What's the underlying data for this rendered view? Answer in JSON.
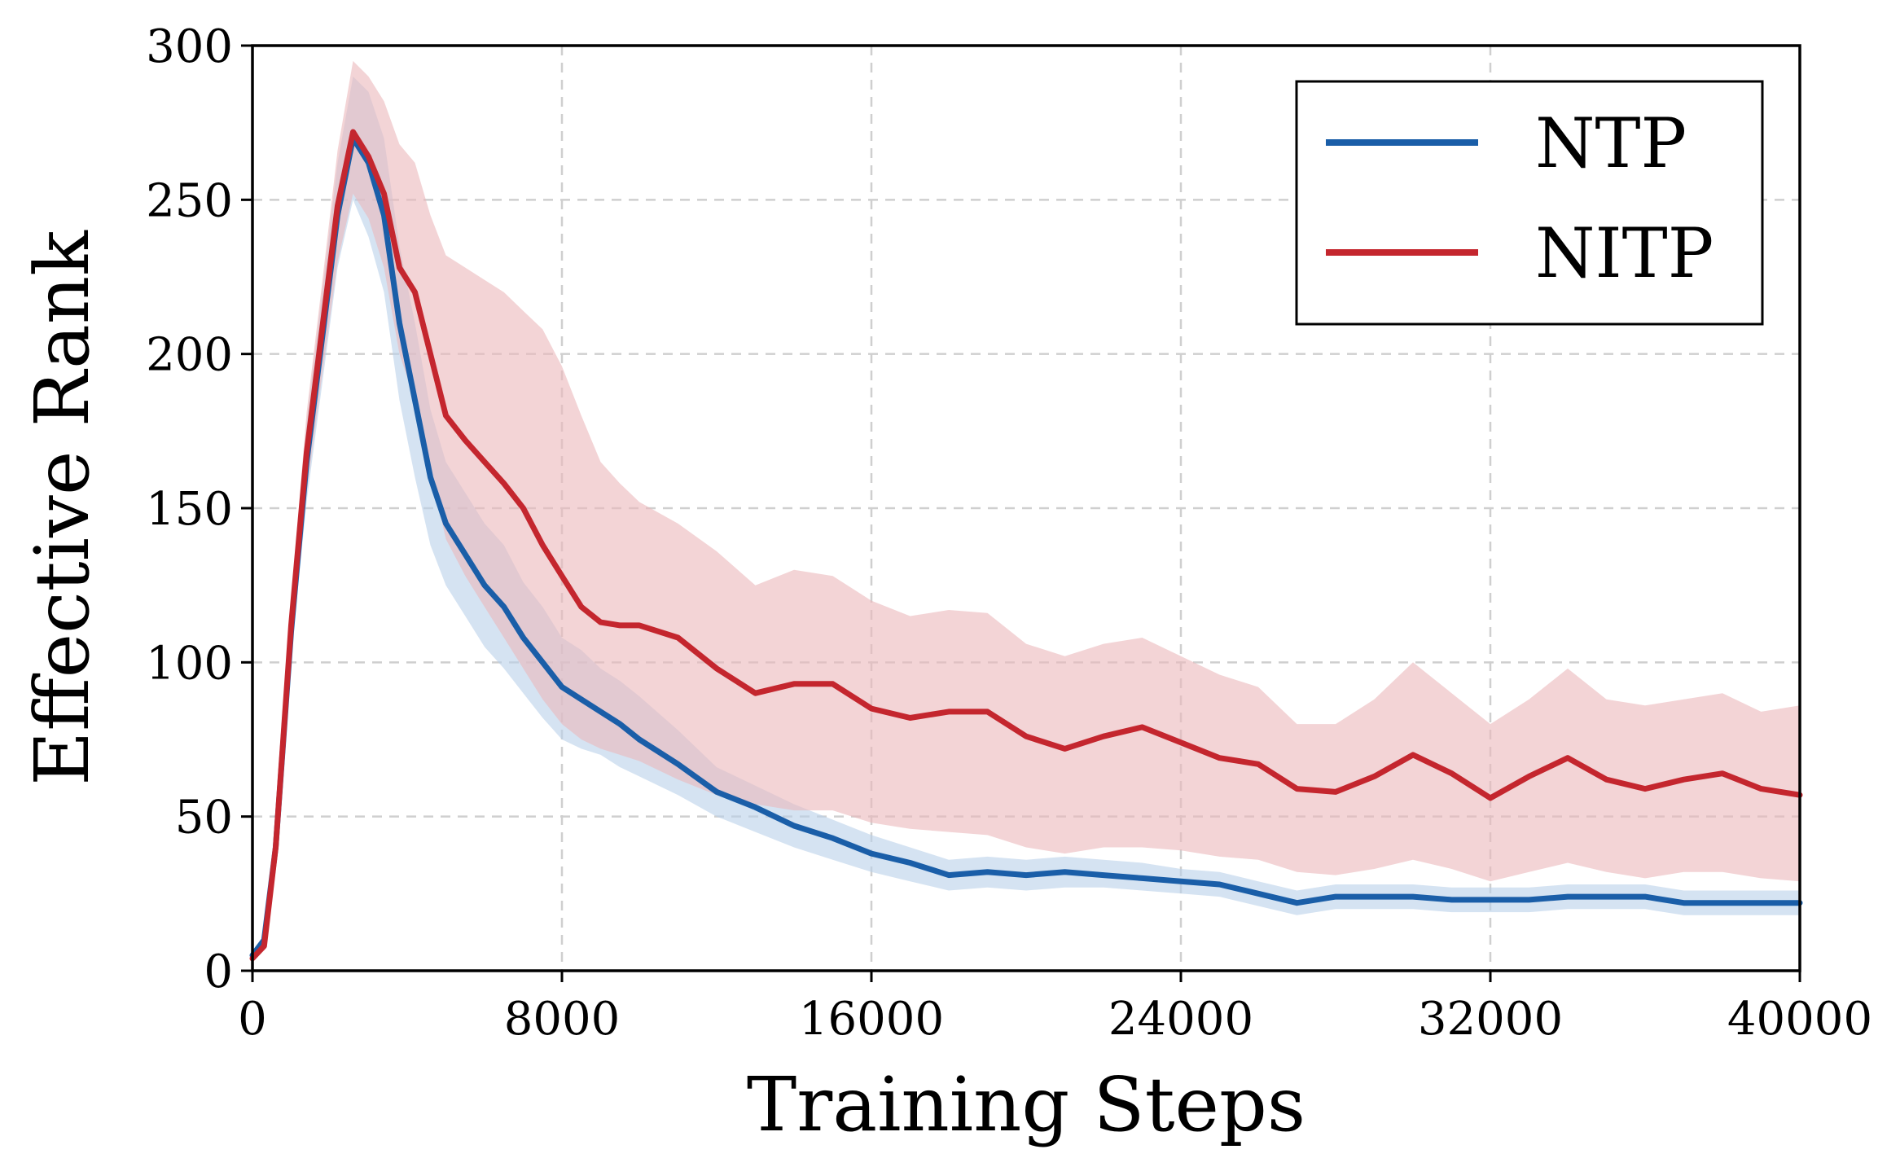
{
  "chart_data": {
    "type": "line",
    "xlabel": "Training Steps",
    "ylabel": "Effective Rank",
    "xlim": [
      0,
      40000
    ],
    "ylim": [
      0,
      300
    ],
    "xticks": [
      0,
      8000,
      16000,
      24000,
      32000,
      40000
    ],
    "xtick_labels": [
      "0",
      "8000",
      "16000",
      "24000",
      "32000",
      "40000"
    ],
    "yticks": [
      0,
      50,
      100,
      150,
      200,
      250,
      300
    ],
    "ytick_labels": [
      "0",
      "50",
      "100",
      "150",
      "200",
      "250",
      "300"
    ],
    "grid": true,
    "legend_position": "top-right",
    "series": [
      {
        "name": "NTP",
        "color": "#1a5ea8",
        "band_color": "#b9d0ea",
        "x": [
          0,
          300,
          600,
          1000,
          1400,
          1800,
          2200,
          2600,
          3000,
          3400,
          3800,
          4200,
          4600,
          5000,
          5500,
          6000,
          6500,
          7000,
          7500,
          8000,
          8500,
          9000,
          9500,
          10000,
          11000,
          12000,
          13000,
          14000,
          15000,
          16000,
          17000,
          18000,
          19000,
          20000,
          21000,
          22000,
          23000,
          24000,
          25000,
          26000,
          27000,
          28000,
          29000,
          30000,
          31000,
          32000,
          33000,
          34000,
          35000,
          36000,
          37000,
          38000,
          39000,
          40000
        ],
        "y": [
          5,
          10,
          40,
          110,
          165,
          205,
          245,
          270,
          262,
          245,
          210,
          185,
          160,
          145,
          135,
          125,
          118,
          108,
          100,
          92,
          88,
          84,
          80,
          75,
          67,
          58,
          53,
          47,
          43,
          38,
          35,
          31,
          32,
          31,
          32,
          31,
          30,
          29,
          28,
          25,
          22,
          24,
          24,
          24,
          23,
          23,
          23,
          24,
          24,
          24,
          22,
          22,
          22,
          22
        ],
        "lower": [
          5,
          9,
          37,
          102,
          152,
          190,
          228,
          250,
          238,
          220,
          185,
          160,
          138,
          125,
          115,
          105,
          98,
          90,
          82,
          75,
          72,
          70,
          66,
          63,
          57,
          50,
          45,
          40,
          36,
          32,
          29,
          26,
          27,
          26,
          27,
          27,
          26,
          25,
          24,
          21,
          18,
          20,
          20,
          20,
          19,
          19,
          19,
          20,
          20,
          20,
          18,
          18,
          18,
          18
        ],
        "upper": [
          5,
          11,
          43,
          118,
          178,
          220,
          262,
          290,
          285,
          270,
          235,
          210,
          182,
          165,
          155,
          145,
          138,
          126,
          118,
          108,
          104,
          98,
          94,
          89,
          78,
          66,
          60,
          54,
          49,
          44,
          40,
          36,
          37,
          36,
          37,
          36,
          35,
          33,
          32,
          29,
          26,
          28,
          28,
          28,
          27,
          27,
          27,
          28,
          28,
          28,
          26,
          26,
          26,
          26
        ]
      },
      {
        "name": "NITP",
        "color": "#c4262e",
        "band_color": "#ebb7bb",
        "x": [
          0,
          300,
          600,
          1000,
          1400,
          1800,
          2200,
          2600,
          3000,
          3400,
          3800,
          4200,
          4600,
          5000,
          5500,
          6000,
          6500,
          7000,
          7500,
          8000,
          8500,
          9000,
          9500,
          10000,
          11000,
          12000,
          13000,
          14000,
          15000,
          16000,
          17000,
          18000,
          19000,
          20000,
          21000,
          22000,
          23000,
          24000,
          25000,
          26000,
          27000,
          28000,
          29000,
          30000,
          31000,
          32000,
          33000,
          34000,
          35000,
          36000,
          37000,
          38000,
          39000,
          40000
        ],
        "y": [
          4,
          8,
          40,
          112,
          168,
          208,
          248,
          272,
          264,
          252,
          228,
          220,
          200,
          180,
          172,
          165,
          158,
          150,
          138,
          128,
          118,
          113,
          112,
          112,
          108,
          98,
          90,
          93,
          93,
          85,
          82,
          84,
          84,
          76,
          72,
          76,
          79,
          74,
          69,
          67,
          59,
          58,
          63,
          70,
          64,
          56,
          63,
          69,
          62,
          59,
          62,
          64,
          59,
          57
        ],
        "lower": [
          4,
          7,
          37,
          104,
          155,
          193,
          230,
          252,
          244,
          228,
          200,
          185,
          162,
          140,
          128,
          118,
          108,
          98,
          88,
          80,
          75,
          72,
          70,
          68,
          62,
          57,
          54,
          52,
          52,
          48,
          46,
          45,
          44,
          40,
          38,
          40,
          40,
          39,
          37,
          36,
          32,
          31,
          33,
          36,
          33,
          29,
          32,
          35,
          32,
          30,
          32,
          32,
          30,
          29
        ],
        "upper": [
          4,
          9,
          43,
          120,
          181,
          223,
          266,
          295,
          290,
          282,
          268,
          262,
          245,
          232,
          228,
          224,
          220,
          214,
          208,
          196,
          180,
          165,
          158,
          152,
          145,
          136,
          125,
          130,
          128,
          120,
          115,
          117,
          116,
          106,
          102,
          106,
          108,
          102,
          96,
          92,
          80,
          80,
          88,
          100,
          90,
          80,
          88,
          98,
          88,
          86,
          88,
          90,
          84,
          86
        ]
      }
    ]
  }
}
